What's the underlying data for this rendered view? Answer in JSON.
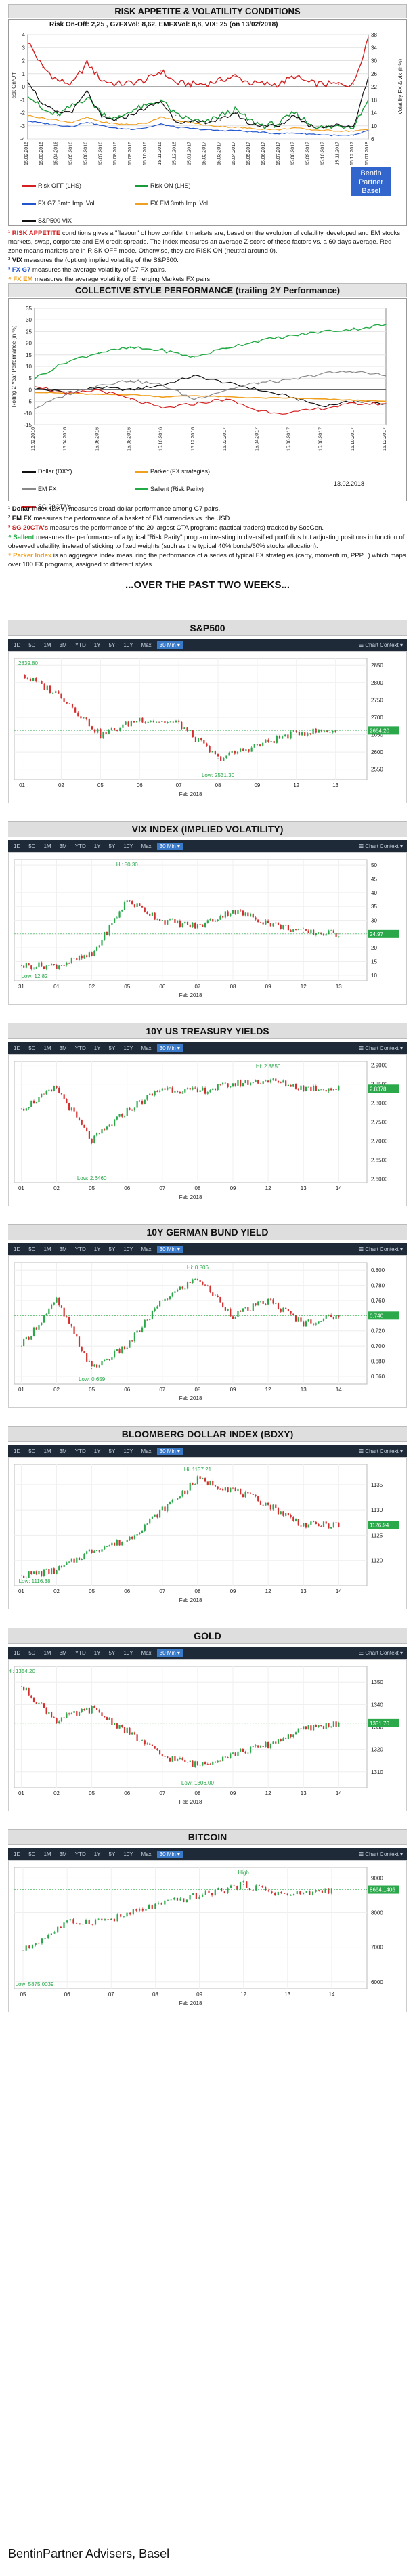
{
  "risk": {
    "title": "RISK APPETITE & VOLATILITY CONDITIONS",
    "summary": "Risk On-Off: 2,25 , G7FXVol: 8,62, EMFXVol: 8,8, VIX: 25 (on 13/02/2018)",
    "ylabel_left": "Risk On/Off",
    "ylabel_right": "Volatility FX & vix (in%)",
    "logo_line1": "Bentin",
    "logo_line2": "Partner",
    "logo_line3": "Basel",
    "legend": [
      {
        "label": "Risk OFF (LHS)",
        "color": "#d42020"
      },
      {
        "label": "Risk ON (LHS)",
        "color": "#1a9a3a"
      },
      {
        "label": "FX G7 3mth Imp. Vol.",
        "color": "#2255cc"
      },
      {
        "label": "FX EM 3mth Imp. Vol.",
        "color": "#f0a020"
      },
      {
        "label": "S&P500 VIX",
        "color": "#111111"
      }
    ],
    "notes": [
      {
        "lead": "¹ RISK APPETITE",
        "lead_color": "#d42020",
        "text": " conditions gives a \"flavour\" of how confident markets are, based on the evolution of volatility, developed and EM stocks markets, swap, corporate and EM credit spreads. The index measures an average Z-score of these factors vs. a 60 days average. Red zone means markets are in RISK OFF mode. Otherwise, they are RISK ON (neutral around 0)."
      },
      {
        "lead": "² VIX",
        "lead_color": "#111111",
        "text": " measures the (option) implied volatility of the S&P500."
      },
      {
        "lead": "³ FX G7",
        "lead_color": "#2255cc",
        "text": " measures the average volatility of G7 FX pairs."
      },
      {
        "lead": "⁴ FX EM",
        "lead_color": "#f0a020",
        "text": " measures the average volatility of Emerging Markets FX pairs."
      }
    ]
  },
  "style": {
    "title": "COLLECTIVE STYLE PERFORMANCE (trailing 2Y Performance)",
    "ylabel": "Rolling 2 Year Performance (in %)",
    "date_stamp": "13.02.2018",
    "legend": [
      {
        "label": "Dollar (DXY)",
        "color": "#111111"
      },
      {
        "label": "Parker (FX strategies)",
        "color": "#f0a020"
      },
      {
        "label": "EM FX",
        "color": "#888888"
      },
      {
        "label": "Sallent (Risk Parity)",
        "color": "#22aa44"
      },
      {
        "label": "SG 20CTA's",
        "color": "#d42020"
      }
    ],
    "notes": [
      {
        "lead": "¹ Dollar",
        "lead_color": "#111111",
        "text": " Index (DXY) measures broad dollar performance among G7 pairs."
      },
      {
        "lead": "² EM FX",
        "lead_color": "#111111",
        "text": " measures the performance of a basket of EM currencies vs. the USD."
      },
      {
        "lead": "³ SG 20CTA's",
        "lead_color": "#d42020",
        "text": " measures the performance of the 20 largest CTA programs (tactical traders) tracked by SocGen."
      },
      {
        "lead": "⁴ Sallent",
        "lead_color": "#22aa44",
        "text": " measures the performance of a typical \"Risk Parity\" program investing in diversified portfolios but adjusting positions in function of observed volatility, instead of sticking to fixed weights (such as the typical 40% bonds/60% stocks allocation)."
      },
      {
        "lead": "⁵ Parker Index",
        "lead_color": "#f0a020",
        "text": " is an aggregate index measuring the performance of a series of typical FX strategies (carry, momentum, PPP...) which maps over 100 FX programs, assigned to different styles."
      }
    ]
  },
  "two_weeks_heading": "...OVER THE PAST TWO WEEKS...",
  "toolbar": {
    "items": [
      "1D",
      "5D",
      "1M",
      "3M",
      "YTD",
      "1Y",
      "5Y",
      "10Y",
      "Max"
    ],
    "active": "30 Min",
    "chart_context": "Chart Context"
  },
  "instruments": [
    {
      "name": "S&P500",
      "xlabel": "Feb 2018",
      "ticks_x": [
        "01",
        "02",
        "05",
        "06",
        "07",
        "08",
        "09",
        "12",
        "13"
      ],
      "ticks_y": [
        "2850",
        "2800",
        "2750",
        "2700",
        "2650",
        "2600",
        "2550"
      ],
      "last": "2664.20",
      "high_label": "",
      "low_label": "Low: 2531.30",
      "start_label": "2839.80"
    },
    {
      "name": "VIX INDEX (IMPLIED VOLATILITY)",
      "xlabel": "Feb 2018",
      "ticks_x": [
        "31",
        "01",
        "02",
        "05",
        "06",
        "07",
        "08",
        "09",
        "12",
        "13"
      ],
      "ticks_y": [
        "50",
        "45",
        "40",
        "35",
        "30",
        "25",
        "20",
        "15",
        "10"
      ],
      "last": "24.97",
      "high_label": "Hi: 50.30",
      "low_label": "Low: 12.82",
      "start_label": ""
    },
    {
      "name": "10Y US TREASURY YIELDS",
      "xlabel": "Feb 2018",
      "ticks_x": [
        "01",
        "02",
        "05",
        "06",
        "07",
        "08",
        "09",
        "12",
        "13",
        "14"
      ],
      "ticks_y": [
        "2.9000",
        "2.8500",
        "2.8000",
        "2.7500",
        "2.7000",
        "2.6500",
        "2.6000"
      ],
      "last": "2.8378",
      "high_label": "Hi: 2.8850",
      "low_label": "Low: 2.6460",
      "start_label": ""
    },
    {
      "name": "10Y GERMAN BUND YIELD",
      "xlabel": "Feb 2018",
      "ticks_x": [
        "01",
        "02",
        "05",
        "06",
        "07",
        "08",
        "09",
        "12",
        "13",
        "14"
      ],
      "ticks_y": [
        "0.800",
        "0.780",
        "0.760",
        "0.740",
        "0.720",
        "0.700",
        "0.680",
        "0.660"
      ],
      "last": "0.740",
      "high_label": "Hi: 0.806",
      "low_label": "Low: 0.659",
      "start_label": ""
    },
    {
      "name": "BLOOMBERG DOLLAR INDEX (BDXY)",
      "xlabel": "Feb 2018",
      "ticks_x": [
        "01",
        "02",
        "05",
        "06",
        "07",
        "08",
        "09",
        "12",
        "13",
        "14"
      ],
      "ticks_y": [
        "1135",
        "1130",
        "1125",
        "1120"
      ],
      "last": "1126.94",
      "high_label": "Hi: 1137.21",
      "low_label": "Low: 1116.38",
      "start_label": ""
    },
    {
      "name": "GOLD",
      "xlabel": "Feb 2018",
      "ticks_x": [
        "01",
        "02",
        "05",
        "06",
        "07",
        "08",
        "09",
        "12",
        "13",
        "14"
      ],
      "ticks_y": [
        "1350",
        "1340",
        "1330",
        "1320",
        "1310"
      ],
      "last": "1331.70",
      "high_label": "Hi: 1354.20",
      "low_label": "Low: 1306.00",
      "start_label": ""
    },
    {
      "name": "BITCOIN",
      "xlabel": "Feb 2018",
      "ticks_x": [
        "05",
        "06",
        "07",
        "08",
        "09",
        "12",
        "13",
        "14"
      ],
      "ticks_y": [
        "9000",
        "8000",
        "7000",
        "6000"
      ],
      "last": "8664.1406",
      "high_label": "High",
      "low_label": "Low: 5875.0039",
      "start_label": ""
    }
  ],
  "footer": "BentinPartner Advisers, Basel",
  "chart_data": [
    {
      "type": "line",
      "title": "RISK APPETITE & VOLATILITY CONDITIONS",
      "ylabel": "Risk On/Off",
      "y2label": "Volatility FX & vix (in%)",
      "x": [
        "15.02.2016",
        "15.03.2016",
        "15.04.2016",
        "15.05.2016",
        "15.06.2016",
        "15.07.2016",
        "15.08.2016",
        "15.09.2016",
        "15.10.2016",
        "15.11.2016",
        "15.12.2016",
        "15.01.2017",
        "15.02.2017",
        "15.03.2017",
        "15.04.2017",
        "15.05.2017",
        "15.06.2017",
        "15.07.2017",
        "15.08.2017",
        "15.09.2017",
        "15.10.2017",
        "15.11.2017",
        "15.12.2017",
        "15.01.2018"
      ],
      "ylim": [
        -4,
        4
      ],
      "y2lim": [
        6,
        38
      ],
      "series": [
        {
          "name": "Risk OFF (LHS)",
          "values": [
            3.5,
            1.5,
            0.5,
            0.2,
            1.8,
            0.5,
            0.2,
            0.3,
            0.5,
            1.2,
            0.3,
            0.2,
            0.2,
            0.5,
            0.8,
            0.3,
            0.2,
            0.2,
            0.8,
            0.3,
            0.2,
            0.2,
            0.2,
            3.8
          ]
        },
        {
          "name": "Risk ON (LHS)",
          "values": [
            -0.5,
            -1.8,
            -2.2,
            -1.5,
            -0.8,
            -2.0,
            -2.5,
            -1.8,
            -1.5,
            -1.0,
            -2.2,
            -2.5,
            -2.8,
            -2.2,
            -1.8,
            -2.6,
            -3.0,
            -2.8,
            -2.0,
            -2.8,
            -3.2,
            -3.0,
            -3.0,
            -1.0
          ]
        },
        {
          "name": "FX G7 3mth Imp. Vol.",
          "values": [
            11.5,
            10.8,
            10.2,
            9.8,
            11.2,
            10.0,
            9.2,
            9.0,
            9.4,
            10.5,
            9.6,
            9.2,
            8.8,
            8.5,
            8.6,
            8.2,
            7.9,
            7.6,
            7.8,
            7.5,
            7.2,
            7.0,
            7.0,
            8.6
          ]
        },
        {
          "name": "FX EM 3mth Imp. Vol.",
          "values": [
            13.2,
            12.4,
            11.8,
            11.0,
            12.6,
            11.2,
            10.6,
            10.4,
            10.8,
            12.8,
            11.6,
            11.0,
            10.2,
            9.8,
            9.6,
            9.2,
            9.0,
            8.8,
            9.4,
            8.8,
            8.6,
            8.4,
            8.4,
            8.8
          ]
        },
        {
          "name": "S&P500 VIX",
          "values": [
            24.0,
            16.5,
            14.0,
            14.5,
            20.5,
            12.5,
            11.8,
            13.5,
            15.5,
            17.5,
            11.5,
            11.0,
            11.2,
            11.8,
            14.0,
            10.5,
            10.2,
            9.8,
            13.5,
            10.0,
            9.8,
            10.2,
            9.8,
            25.0
          ]
        }
      ]
    },
    {
      "type": "line",
      "title": "COLLECTIVE STYLE PERFORMANCE (trailing 2Y Performance)",
      "ylabel": "Rolling 2 Year Performance (in %)",
      "x": [
        "15.02.2016",
        "15.04.2016",
        "15.06.2016",
        "15.08.2016",
        "15.10.2016",
        "15.12.2016",
        "15.02.2017",
        "15.04.2017",
        "15.06.2017",
        "15.08.2017",
        "15.10.2017",
        "15.12.2017"
      ],
      "ylim": [
        -15,
        35
      ],
      "series": [
        {
          "name": "Dollar (DXY)",
          "values": [
            0.5,
            -1,
            1,
            0,
            2,
            6,
            3,
            0,
            -3,
            -7,
            -5,
            -6
          ]
        },
        {
          "name": "Parker (FX strategies)",
          "values": [
            -1,
            -1.5,
            -2,
            -2,
            -3,
            -2.5,
            -3,
            -3.5,
            -3.5,
            -4,
            -4.5,
            -5
          ]
        },
        {
          "name": "EM FX",
          "values": [
            -8,
            -2,
            2,
            4,
            2,
            -4,
            0,
            3,
            4,
            7,
            8,
            6
          ]
        },
        {
          "name": "Sallent (Risk Parity)",
          "values": [
            5,
            12,
            16,
            18,
            17,
            14,
            18,
            21,
            23,
            25,
            26,
            28
          ]
        },
        {
          "name": "SG 20CTA's",
          "values": [
            2,
            -2,
            0,
            -4,
            -8,
            -6,
            -4,
            -9,
            -10,
            -8,
            -6,
            -6
          ]
        }
      ]
    },
    {
      "type": "line",
      "title": "S&P500",
      "xlabel": "Feb 2018",
      "ylim": [
        2520,
        2870
      ],
      "x": [
        "01",
        "02",
        "05",
        "06",
        "07",
        "08",
        "09",
        "12",
        "13"
      ],
      "values": [
        2822,
        2762,
        2648,
        2695,
        2682,
        2581,
        2619,
        2656,
        2662
      ]
    },
    {
      "type": "line",
      "title": "VIX INDEX (IMPLIED VOLATILITY)",
      "xlabel": "Feb 2018",
      "ylim": [
        8,
        52
      ],
      "x": [
        "31",
        "01",
        "02",
        "05",
        "06",
        "07",
        "08",
        "09",
        "12",
        "13"
      ],
      "values": [
        13.5,
        13.5,
        17.3,
        37.3,
        29.9,
        27.7,
        33.5,
        29.1,
        25.6,
        25.0
      ]
    },
    {
      "type": "line",
      "title": "10Y US TREASURY YIELDS",
      "xlabel": "Feb 2018",
      "ylim": [
        2.59,
        2.91
      ],
      "x": [
        "01",
        "02",
        "05",
        "06",
        "07",
        "08",
        "09",
        "12",
        "13",
        "14"
      ],
      "values": [
        2.785,
        2.84,
        2.7,
        2.78,
        2.84,
        2.83,
        2.85,
        2.86,
        2.84,
        2.838
      ]
    },
    {
      "type": "line",
      "title": "10Y GERMAN BUND YIELD",
      "xlabel": "Feb 2018",
      "ylim": [
        0.65,
        0.81
      ],
      "x": [
        "01",
        "02",
        "05",
        "06",
        "07",
        "08",
        "09",
        "12",
        "13",
        "14"
      ],
      "values": [
        0.7,
        0.76,
        0.67,
        0.7,
        0.76,
        0.79,
        0.74,
        0.76,
        0.73,
        0.74
      ]
    },
    {
      "type": "line",
      "title": "BLOOMBERG DOLLAR INDEX (BDXY)",
      "xlabel": "Feb 2018",
      "ylim": [
        1115,
        1139
      ],
      "x": [
        "01",
        "02",
        "05",
        "06",
        "07",
        "08",
        "09",
        "12",
        "13",
        "14"
      ],
      "values": [
        1117,
        1118,
        1122,
        1124,
        1130,
        1136,
        1134,
        1131,
        1127,
        1127
      ]
    },
    {
      "type": "line",
      "title": "GOLD",
      "xlabel": "Feb 2018",
      "ylim": [
        1303,
        1357
      ],
      "x": [
        "01",
        "02",
        "05",
        "06",
        "07",
        "08",
        "09",
        "12",
        "13",
        "14"
      ],
      "values": [
        1348,
        1333,
        1338,
        1328,
        1317,
        1313,
        1318,
        1322,
        1329,
        1331.7
      ]
    },
    {
      "type": "line",
      "title": "BITCOIN",
      "xlabel": "Feb 2018",
      "ylim": [
        5800,
        9300
      ],
      "x": [
        "05",
        "06",
        "07",
        "08",
        "09",
        "12",
        "13",
        "14"
      ],
      "values": [
        6900,
        7700,
        7800,
        8200,
        8500,
        8800,
        8500,
        8664
      ]
    }
  ]
}
